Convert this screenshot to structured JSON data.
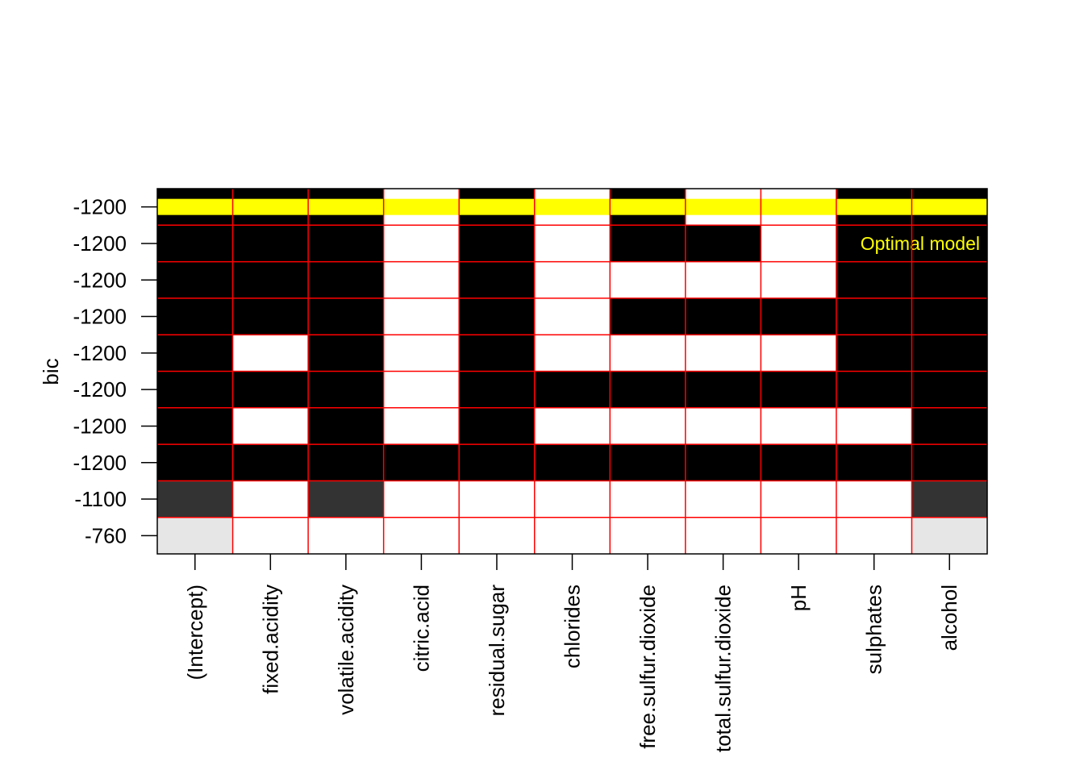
{
  "chart_data": {
    "type": "heatmap",
    "title": "",
    "ylabel": "bic",
    "xlabel": "",
    "columns": [
      "(Intercept)",
      "fixed.acidity",
      "volatile.acidity",
      "citric.acid",
      "residual.sugar",
      "chlorides",
      "free.sulfur.dioxide",
      "total.sulfur.dioxide",
      "pH",
      "sulphates",
      "alcohol"
    ],
    "rows": [
      {
        "bic_label": "-1200",
        "shade": "#000000",
        "included": [
          1,
          1,
          1,
          0,
          1,
          0,
          1,
          0,
          0,
          1,
          1
        ]
      },
      {
        "bic_label": "-1200",
        "shade": "#000000",
        "included": [
          1,
          1,
          1,
          0,
          1,
          0,
          1,
          1,
          0,
          1,
          1
        ]
      },
      {
        "bic_label": "-1200",
        "shade": "#000000",
        "included": [
          1,
          1,
          1,
          0,
          1,
          0,
          0,
          0,
          0,
          1,
          1
        ]
      },
      {
        "bic_label": "-1200",
        "shade": "#000000",
        "included": [
          1,
          1,
          1,
          0,
          1,
          0,
          1,
          1,
          1,
          1,
          1
        ]
      },
      {
        "bic_label": "-1200",
        "shade": "#000000",
        "included": [
          1,
          0,
          1,
          0,
          1,
          0,
          0,
          0,
          0,
          1,
          1
        ]
      },
      {
        "bic_label": "-1200",
        "shade": "#000000",
        "included": [
          1,
          1,
          1,
          0,
          1,
          1,
          1,
          1,
          1,
          1,
          1
        ]
      },
      {
        "bic_label": "-1200",
        "shade": "#000000",
        "included": [
          1,
          0,
          1,
          0,
          1,
          0,
          0,
          0,
          0,
          0,
          1
        ]
      },
      {
        "bic_label": "-1200",
        "shade": "#000000",
        "included": [
          1,
          1,
          1,
          1,
          1,
          1,
          1,
          1,
          1,
          1,
          1
        ]
      },
      {
        "bic_label": "-1100",
        "shade": "#333333",
        "included": [
          1,
          0,
          1,
          0,
          0,
          0,
          0,
          0,
          0,
          0,
          1
        ]
      },
      {
        "bic_label": "-760",
        "shade": "#e6e6e6",
        "included": [
          1,
          0,
          0,
          0,
          0,
          0,
          0,
          0,
          0,
          0,
          1
        ]
      }
    ],
    "highlight": {
      "row_index": 0,
      "color": "#ffff00",
      "annotation": "Optimal model"
    },
    "grid_color": "#ff0000",
    "empty_color": "#ffffff"
  }
}
